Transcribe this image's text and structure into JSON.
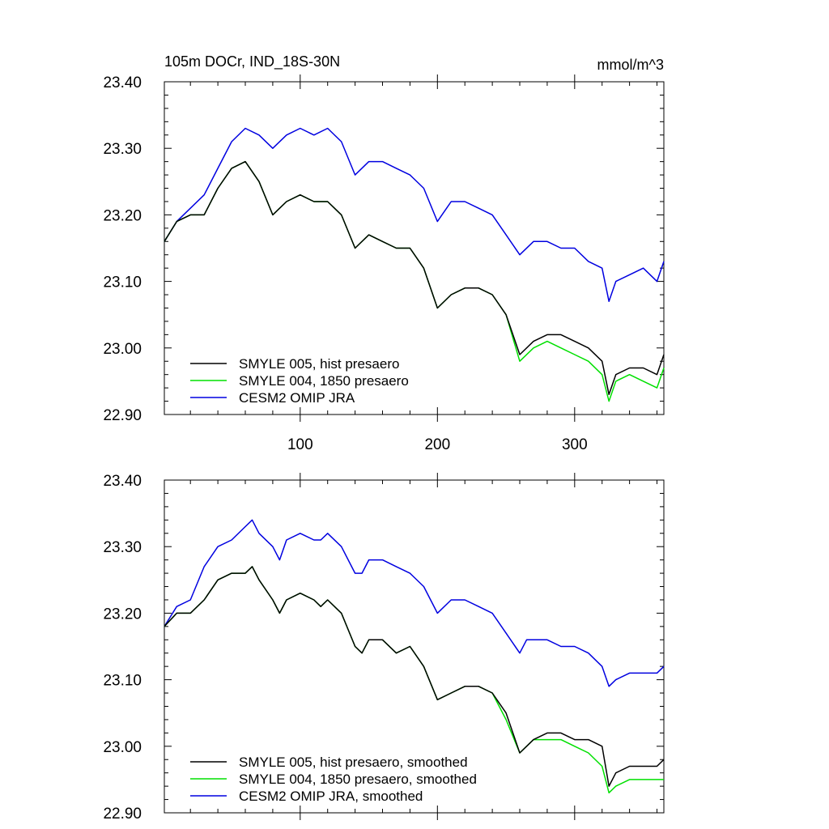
{
  "chart_data": [
    {
      "type": "line",
      "title": "105m DOCr, IND_18S-30N",
      "units": "mmol/m^3",
      "xlim": [
        1,
        365
      ],
      "ylim": [
        22.9,
        23.4
      ],
      "xticks": [
        100,
        200,
        300
      ],
      "xtick_labels": [
        "100",
        "200",
        "300"
      ],
      "yticks": [
        22.9,
        23.0,
        23.1,
        23.2,
        23.3,
        23.4
      ],
      "ytick_labels": [
        "22.90",
        "23.00",
        "23.10",
        "23.20",
        "23.30",
        "23.40"
      ],
      "legend_position": "bottom-left",
      "series": [
        {
          "name": "SMYLE 005, hist presaero",
          "color": "#000000",
          "x": [
            1,
            10,
            20,
            30,
            40,
            50,
            60,
            70,
            80,
            90,
            100,
            110,
            120,
            130,
            140,
            150,
            160,
            170,
            180,
            190,
            200,
            210,
            220,
            230,
            240,
            250,
            260,
            270,
            280,
            290,
            300,
            310,
            320,
            325,
            330,
            340,
            350,
            360,
            365
          ],
          "y": [
            23.16,
            23.19,
            23.2,
            23.2,
            23.24,
            23.27,
            23.28,
            23.25,
            23.2,
            23.22,
            23.23,
            23.22,
            23.22,
            23.2,
            23.15,
            23.17,
            23.16,
            23.15,
            23.15,
            23.12,
            23.06,
            23.08,
            23.09,
            23.09,
            23.08,
            23.05,
            22.99,
            23.01,
            23.02,
            23.02,
            23.01,
            23.0,
            22.98,
            22.93,
            22.96,
            22.97,
            22.97,
            22.96,
            22.99
          ]
        },
        {
          "name": "SMYLE 004, 1850 presaero",
          "color": "#00e000",
          "x": [
            1,
            10,
            20,
            30,
            40,
            50,
            60,
            70,
            80,
            90,
            100,
            110,
            120,
            130,
            140,
            150,
            160,
            170,
            180,
            190,
            200,
            210,
            220,
            230,
            240,
            250,
            260,
            270,
            280,
            290,
            300,
            310,
            320,
            325,
            330,
            340,
            350,
            360,
            365
          ],
          "y": [
            23.16,
            23.19,
            23.2,
            23.2,
            23.24,
            23.27,
            23.28,
            23.25,
            23.2,
            23.22,
            23.23,
            23.22,
            23.22,
            23.2,
            23.15,
            23.17,
            23.16,
            23.15,
            23.15,
            23.12,
            23.06,
            23.08,
            23.09,
            23.09,
            23.08,
            23.05,
            22.98,
            23.0,
            23.01,
            23.0,
            22.99,
            22.98,
            22.96,
            22.92,
            22.95,
            22.96,
            22.95,
            22.94,
            22.97
          ]
        },
        {
          "name": "CESM2 OMIP JRA",
          "color": "#0000e0",
          "x": [
            1,
            10,
            20,
            30,
            40,
            50,
            60,
            70,
            80,
            90,
            100,
            110,
            120,
            130,
            140,
            150,
            160,
            170,
            180,
            190,
            200,
            210,
            220,
            230,
            240,
            250,
            260,
            270,
            280,
            290,
            300,
            310,
            320,
            325,
            330,
            340,
            350,
            360,
            365
          ],
          "y": [
            23.16,
            23.19,
            23.21,
            23.23,
            23.27,
            23.31,
            23.33,
            23.32,
            23.3,
            23.32,
            23.33,
            23.32,
            23.33,
            23.31,
            23.26,
            23.28,
            23.28,
            23.27,
            23.26,
            23.24,
            23.19,
            23.22,
            23.22,
            23.21,
            23.2,
            23.17,
            23.14,
            23.16,
            23.16,
            23.15,
            23.15,
            23.13,
            23.12,
            23.07,
            23.1,
            23.11,
            23.12,
            23.1,
            23.13
          ]
        }
      ]
    },
    {
      "type": "line",
      "title": "",
      "xlim": [
        1,
        365
      ],
      "ylim": [
        22.9,
        23.4
      ],
      "xticks": [
        100,
        200,
        300
      ],
      "xtick_labels": [
        "",
        "",
        ""
      ],
      "yticks": [
        22.9,
        23.0,
        23.1,
        23.2,
        23.3,
        23.4
      ],
      "ytick_labels": [
        "22.90",
        "23.00",
        "23.10",
        "23.20",
        "23.30",
        "23.40"
      ],
      "legend_position": "bottom-left",
      "series": [
        {
          "name": "SMYLE 005, hist presaero, smoothed",
          "color": "#000000",
          "x": [
            1,
            10,
            20,
            30,
            40,
            50,
            60,
            65,
            70,
            80,
            85,
            90,
            100,
            110,
            115,
            120,
            130,
            140,
            145,
            150,
            160,
            170,
            180,
            190,
            200,
            210,
            220,
            230,
            240,
            250,
            260,
            265,
            270,
            280,
            290,
            300,
            310,
            320,
            325,
            330,
            340,
            350,
            360,
            365
          ],
          "y": [
            23.18,
            23.2,
            23.2,
            23.22,
            23.25,
            23.26,
            23.26,
            23.27,
            23.25,
            23.22,
            23.2,
            23.22,
            23.23,
            23.22,
            23.21,
            23.22,
            23.2,
            23.15,
            23.14,
            23.16,
            23.16,
            23.14,
            23.15,
            23.12,
            23.07,
            23.08,
            23.09,
            23.09,
            23.08,
            23.05,
            22.99,
            23.0,
            23.01,
            23.02,
            23.02,
            23.01,
            23.01,
            23.0,
            22.94,
            22.96,
            22.97,
            22.97,
            22.97,
            22.98
          ]
        },
        {
          "name": "SMYLE 004, 1850 presaero, smoothed",
          "color": "#00e000",
          "x": [
            1,
            10,
            20,
            30,
            40,
            50,
            60,
            65,
            70,
            80,
            85,
            90,
            100,
            110,
            115,
            120,
            130,
            140,
            145,
            150,
            160,
            170,
            180,
            190,
            200,
            210,
            220,
            230,
            240,
            250,
            260,
            265,
            270,
            280,
            290,
            300,
            310,
            320,
            325,
            330,
            340,
            350,
            360,
            365
          ],
          "y": [
            23.18,
            23.2,
            23.2,
            23.22,
            23.25,
            23.26,
            23.26,
            23.27,
            23.25,
            23.22,
            23.2,
            23.22,
            23.23,
            23.22,
            23.21,
            23.22,
            23.2,
            23.15,
            23.14,
            23.16,
            23.16,
            23.14,
            23.15,
            23.12,
            23.07,
            23.08,
            23.09,
            23.09,
            23.08,
            23.04,
            22.99,
            23.0,
            23.01,
            23.01,
            23.01,
            23.0,
            22.99,
            22.97,
            22.93,
            22.94,
            22.95,
            22.95,
            22.95,
            22.95
          ]
        },
        {
          "name": "CESM2 OMIP JRA, smoothed",
          "color": "#0000e0",
          "x": [
            1,
            10,
            20,
            30,
            40,
            50,
            60,
            65,
            70,
            80,
            85,
            90,
            100,
            110,
            115,
            120,
            130,
            140,
            145,
            150,
            160,
            170,
            180,
            190,
            200,
            210,
            220,
            230,
            240,
            250,
            260,
            265,
            270,
            280,
            290,
            300,
            310,
            320,
            325,
            330,
            340,
            350,
            360,
            365
          ],
          "y": [
            23.18,
            23.21,
            23.22,
            23.27,
            23.3,
            23.31,
            23.33,
            23.34,
            23.32,
            23.3,
            23.28,
            23.31,
            23.32,
            23.31,
            23.31,
            23.32,
            23.3,
            23.26,
            23.26,
            23.28,
            23.28,
            23.27,
            23.26,
            23.24,
            23.2,
            23.22,
            23.22,
            23.21,
            23.2,
            23.17,
            23.14,
            23.16,
            23.16,
            23.16,
            23.15,
            23.15,
            23.14,
            23.12,
            23.09,
            23.1,
            23.11,
            23.11,
            23.11,
            23.12
          ]
        }
      ]
    }
  ]
}
